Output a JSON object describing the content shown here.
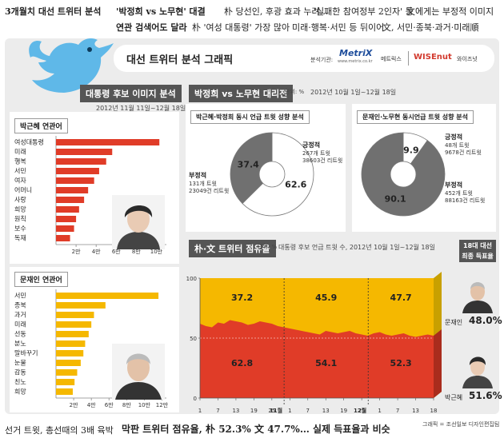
{
  "headline": {
    "topic": "3개월치 대선 트위터 분석",
    "phrase_a1": "'박정희 vs 노무현' 대결",
    "phrase_a2": "朴 당선인, 후광 효과 누려…",
    "phrase_a3": "'실패한 참여정부 2인자' 등",
    "phrase_a4": "文에게는 부정적 이미지",
    "phrase_b1": "연관 검색어도 달라",
    "phrase_b2": "朴 '여성 대통령' 가장 많아",
    "phrase_b3": "미래·행복·서민 등 뒤이어",
    "phrase_b4": "文, 서민·종북·과거·미래順"
  },
  "graphic": {
    "title": "대선 트위터 분석 그래픽",
    "analyst_label": "분석기관:",
    "metrix_logo": "MetriX",
    "metrix_url": "www.metrix.co.kr",
    "metrix_name": "메트릭스",
    "wisenut_logo": "WISEnut",
    "wisenut_name": "와이즈넛"
  },
  "left_panel": {
    "title": "대통령 후보 이미지 분석",
    "period": "2012년 11월 11일~12월 18일",
    "park_tag": "박근혜 연관어",
    "moon_tag": "문재인 연관어"
  },
  "sentiment_panel": {
    "title": "박정희 vs 노무현 대리전",
    "unit": "단위: %",
    "period": "2012년 10월 1일~12월 18일",
    "left_card_title": "박근혜·박정희 동시 언급 트윗 성향 분석",
    "right_card_title": "문재인·노무현 동시언급 트윗 성향 분석",
    "left": {
      "pos_label": "긍정적",
      "pos_tweets": "267개 트윗",
      "pos_rt": "38603건 리트윗",
      "neg_label": "부정적",
      "neg_tweets": "131개 트윗",
      "neg_rt": "23049건 리트윗"
    },
    "right": {
      "pos_label": "긍정적",
      "pos_tweets": "48개 트윗",
      "pos_rt": "9678건 리트윗",
      "neg_label": "부정적",
      "neg_tweets": "452개 트윗",
      "neg_rt": "88163건 리트윗"
    }
  },
  "share_panel": {
    "title": "朴·文 트위터 점유율",
    "unit": "단위: %",
    "period": "대통령 후보 언급 트윗 수, 2012년 10월 1일~12월 18일",
    "result_title_1": "18대 대선",
    "result_title_2": "최종 득표율",
    "moon_name": "문재인",
    "moon_vote": "48.0%",
    "park_name": "박근혜",
    "park_vote": "51.6%",
    "month_11": "11월",
    "month_12": "12월"
  },
  "footer": {
    "caption": "선거 트윗, 총선때의 3배 육박",
    "headline": "막판 트위터 점유율, 朴 52.3% 文 47.7%… 실제 득표율과 비슷",
    "credit": "그래픽 = 조선일보 디자인편집팀"
  },
  "colors": {
    "park_red": "#e03c28",
    "moon_yellow": "#f5b800",
    "grey": "#707070",
    "dark": "#555555"
  },
  "chart_data": [
    {
      "type": "bar",
      "categories": [
        "여성대통령",
        "미래",
        "행복",
        "서민",
        "여자",
        "어머니",
        "사랑",
        "희망",
        "원칙",
        "보수",
        "독재"
      ],
      "values": [
        10.3,
        5.6,
        5.0,
        4.3,
        3.8,
        3.2,
        2.8,
        2.3,
        2.0,
        1.8,
        1.4
      ],
      "xticks": [
        "2만",
        "4만",
        "6만",
        "8만",
        "10만"
      ],
      "xlim": [
        0,
        11
      ],
      "color": "#e03c28"
    },
    {
      "type": "bar",
      "categories": [
        "서민",
        "종북",
        "과거",
        "미래",
        "선동",
        "분노",
        "말바꾸기",
        "눈물",
        "감동",
        "친노",
        "희망"
      ],
      "values": [
        11.6,
        5.6,
        4.3,
        4.0,
        3.7,
        3.3,
        3.1,
        2.8,
        2.4,
        2.1,
        1.9
      ],
      "xticks": [
        "2만",
        "4만",
        "6만",
        "8만",
        "10만",
        "12만"
      ],
      "xlim": [
        0,
        12.5
      ],
      "color": "#f5b800"
    },
    {
      "type": "pie",
      "labels": [
        "긍정적",
        "부정적"
      ],
      "values": [
        62.6,
        37.4
      ],
      "colors": [
        "#ffffff",
        "#707070"
      ]
    },
    {
      "type": "pie",
      "labels": [
        "긍정적",
        "부정적"
      ],
      "values": [
        9.9,
        90.1
      ],
      "colors": [
        "#ffffff",
        "#707070"
      ]
    },
    {
      "type": "area",
      "ylim": [
        0,
        100
      ],
      "yticks": [
        "0",
        "50",
        "100"
      ],
      "xticks": [
        "1",
        "7",
        "13",
        "19",
        "25",
        "1",
        "7",
        "13",
        "19",
        "25",
        "1",
        "7",
        "13",
        "18"
      ],
      "series": [
        {
          "name": "박근혜",
          "values": [
            62,
            60,
            59,
            63,
            62,
            65,
            64,
            63,
            61,
            62,
            64,
            63,
            62,
            60,
            59,
            58,
            57,
            56,
            55,
            54,
            53,
            56,
            55,
            54,
            55,
            56,
            54,
            53,
            52,
            54,
            55,
            53,
            52,
            53,
            54,
            52,
            51,
            52,
            53,
            52
          ]
        },
        {
          "name": "문재인",
          "values": [
            38,
            40,
            41,
            37,
            38,
            35,
            36,
            37,
            39,
            38,
            36,
            37,
            38,
            40,
            41,
            42,
            43,
            44,
            45,
            46,
            47,
            44,
            45,
            46,
            45,
            44,
            46,
            47,
            48,
            46,
            45,
            47,
            48,
            47,
            46,
            48,
            49,
            48,
            47,
            48
          ]
        }
      ],
      "period_labels": [
        {
          "park": "62.8",
          "moon": "37.2"
        },
        {
          "park": "54.1",
          "moon": "45.9"
        },
        {
          "park": "52.3",
          "moon": "47.7"
        }
      ]
    }
  ]
}
